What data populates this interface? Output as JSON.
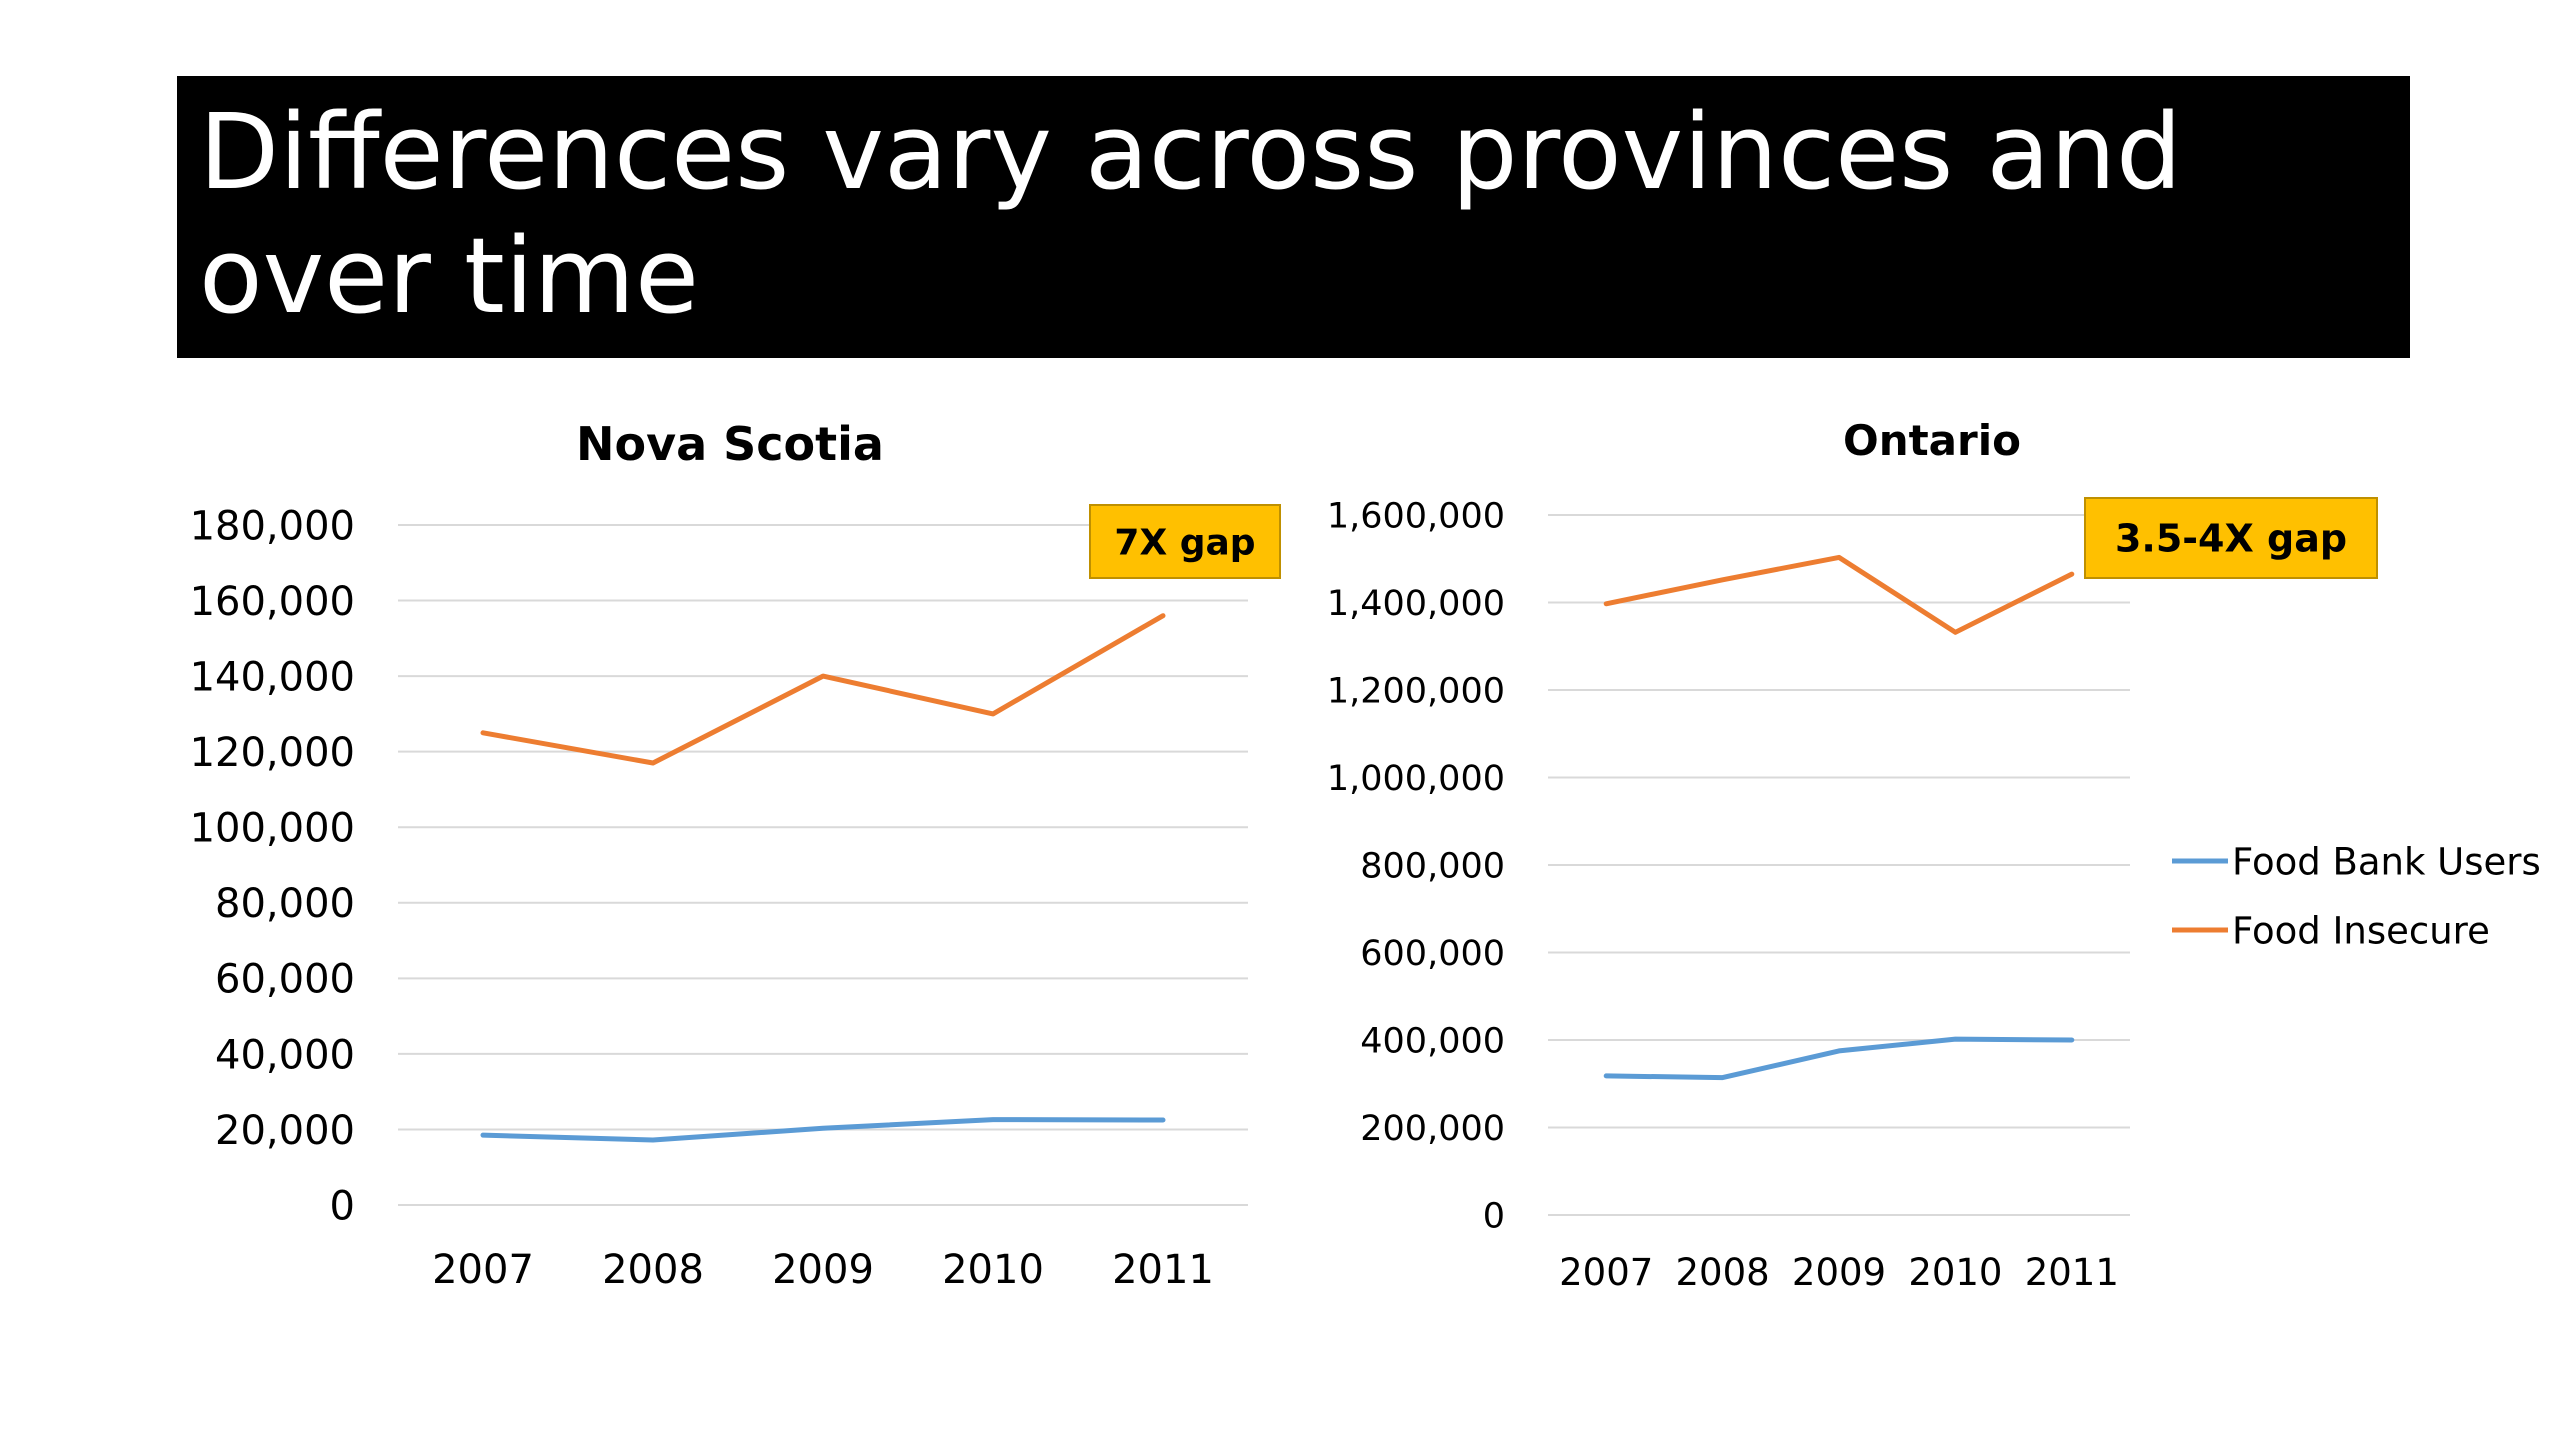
{
  "slide": {
    "title": "Differences vary across provinces and over time"
  },
  "colors": {
    "food_bank_users": "#5B9BD5",
    "food_insecure": "#ED7D31",
    "annotation_fill": "#FFC000",
    "gridline": "#D9D9D9"
  },
  "chart_data": [
    {
      "type": "line",
      "title": "Nova Scotia",
      "categories": [
        "2007",
        "2008",
        "2009",
        "2010",
        "2011"
      ],
      "ylim": [
        0,
        180000
      ],
      "yticks": [
        0,
        20000,
        40000,
        60000,
        80000,
        100000,
        120000,
        140000,
        160000,
        180000
      ],
      "ytick_labels": [
        "0",
        "20,000",
        "40,000",
        "60,000",
        "80,000",
        "100,000",
        "120,000",
        "140,000",
        "160,000",
        "180,000"
      ],
      "grid": true,
      "series": [
        {
          "name": "Food Bank Users",
          "values": [
            18500,
            17200,
            20300,
            22600,
            22500
          ]
        },
        {
          "name": "Food Insecure",
          "values": [
            125000,
            117000,
            140000,
            130000,
            156000
          ]
        }
      ],
      "annotation": "7X gap"
    },
    {
      "type": "line",
      "title": "Ontario",
      "categories": [
        "2007",
        "2008",
        "2009",
        "2010",
        "2011"
      ],
      "ylim": [
        0,
        1600000
      ],
      "yticks": [
        0,
        200000,
        400000,
        600000,
        800000,
        1000000,
        1200000,
        1400000,
        1600000
      ],
      "ytick_labels": [
        "0",
        "200,000",
        "400,000",
        "600,000",
        "800,000",
        "1,000,000",
        "1,200,000",
        "1,400,000",
        "1,600,000"
      ],
      "grid": true,
      "legend": "right",
      "series": [
        {
          "name": "Food Bank Users",
          "values": [
            318000,
            314000,
            375000,
            402000,
            400000
          ]
        },
        {
          "name": "Food Insecure",
          "values": [
            1397000,
            1452000,
            1503000,
            1332000,
            1465000
          ]
        }
      ],
      "annotation": "3.5-4X gap"
    }
  ]
}
